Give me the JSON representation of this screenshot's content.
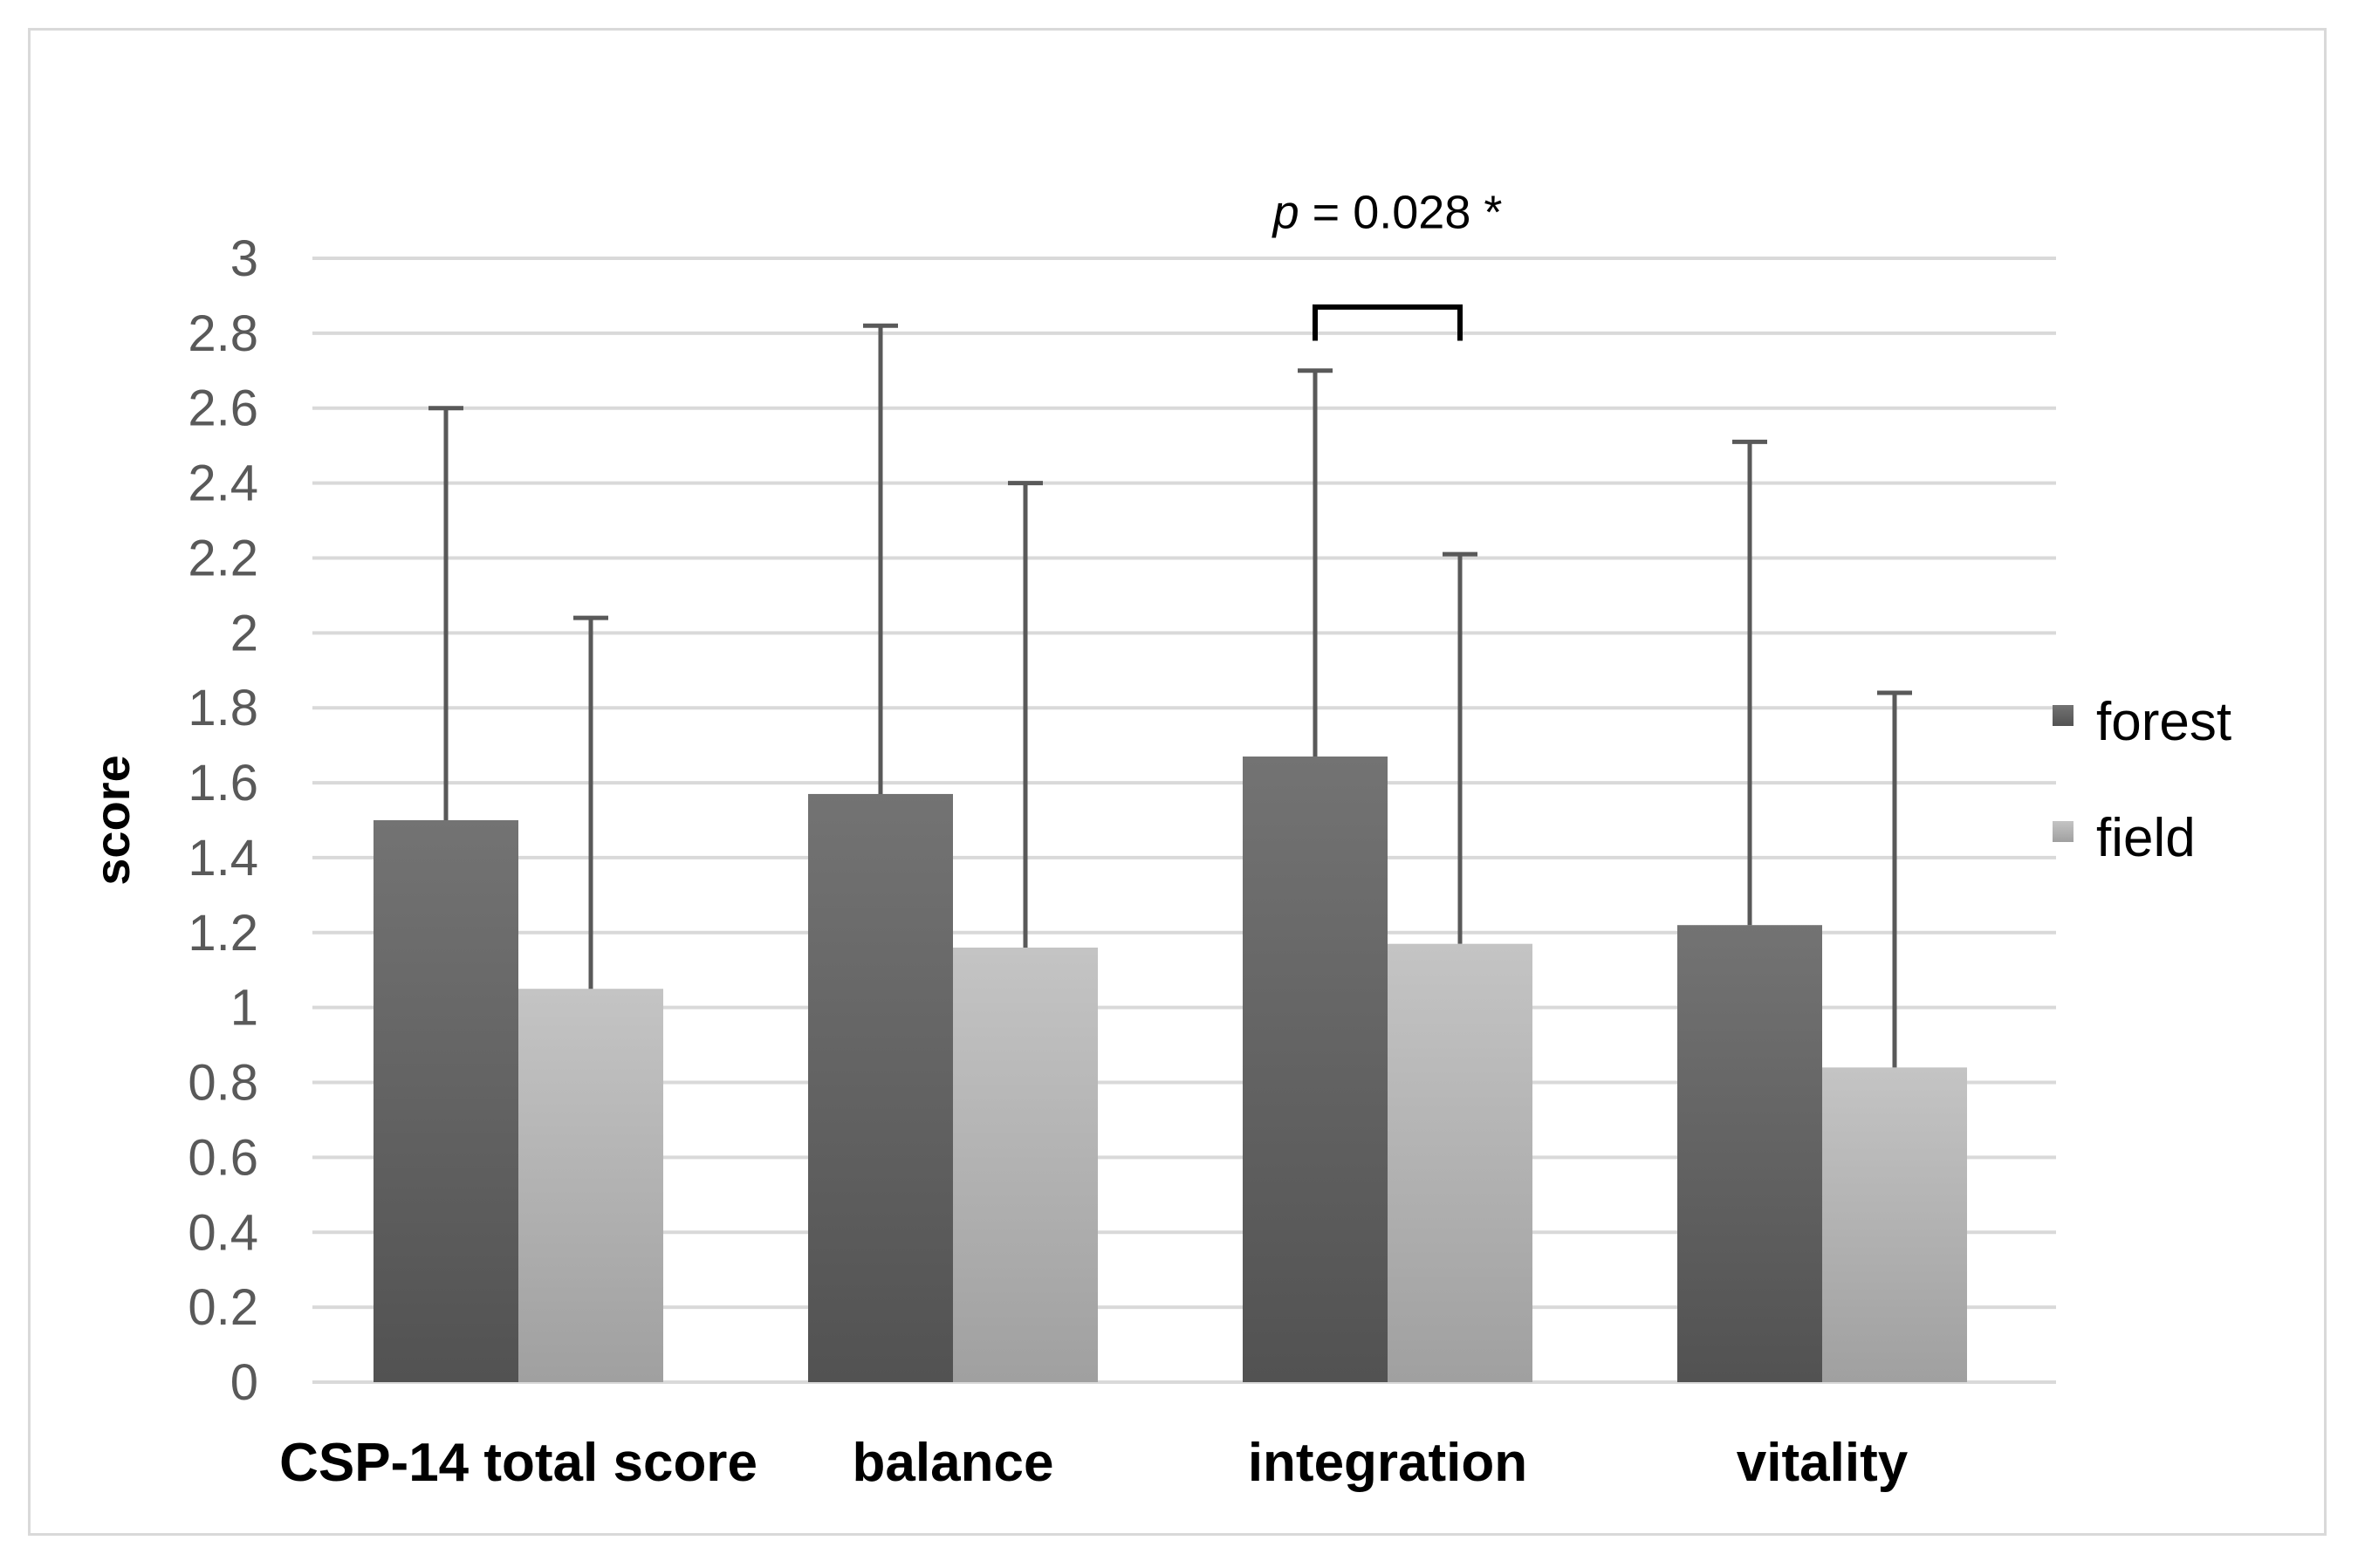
{
  "chart_data": {
    "type": "bar",
    "title": "",
    "xlabel": "",
    "ylabel": "score",
    "ylim": [
      0,
      3
    ],
    "ytick_step": 0.2,
    "yticks": [
      "0",
      "0.2",
      "0.4",
      "0.6",
      "0.8",
      "1",
      "1.2",
      "1.4",
      "1.6",
      "1.8",
      "2",
      "2.2",
      "2.4",
      "2.6",
      "2.8",
      "3"
    ],
    "grid": true,
    "legend_position": "right",
    "categories": [
      "CSP-14 total score",
      "balance",
      "integration",
      "vitality"
    ],
    "series": [
      {
        "name": "forest",
        "values": [
          1.5,
          1.57,
          1.67,
          1.22
        ],
        "error_upper": [
          2.6,
          2.82,
          2.7,
          2.51
        ],
        "color_top": "#737373",
        "color_bottom": "#525252"
      },
      {
        "name": "field",
        "values": [
          1.05,
          1.16,
          1.17,
          0.84
        ],
        "error_upper": [
          2.04,
          2.4,
          2.21,
          1.84
        ],
        "color_top": "#c4c4c4",
        "color_bottom": "#a0a0a0"
      }
    ],
    "annotations": [
      {
        "category_index": 2,
        "p_symbol": "p",
        "text": " = 0.028 *"
      }
    ],
    "colors": {
      "grid": "#d9d9d9",
      "error_bar": "#595959",
      "tick_text": "#595959",
      "frame": "#d9d9d9"
    }
  }
}
